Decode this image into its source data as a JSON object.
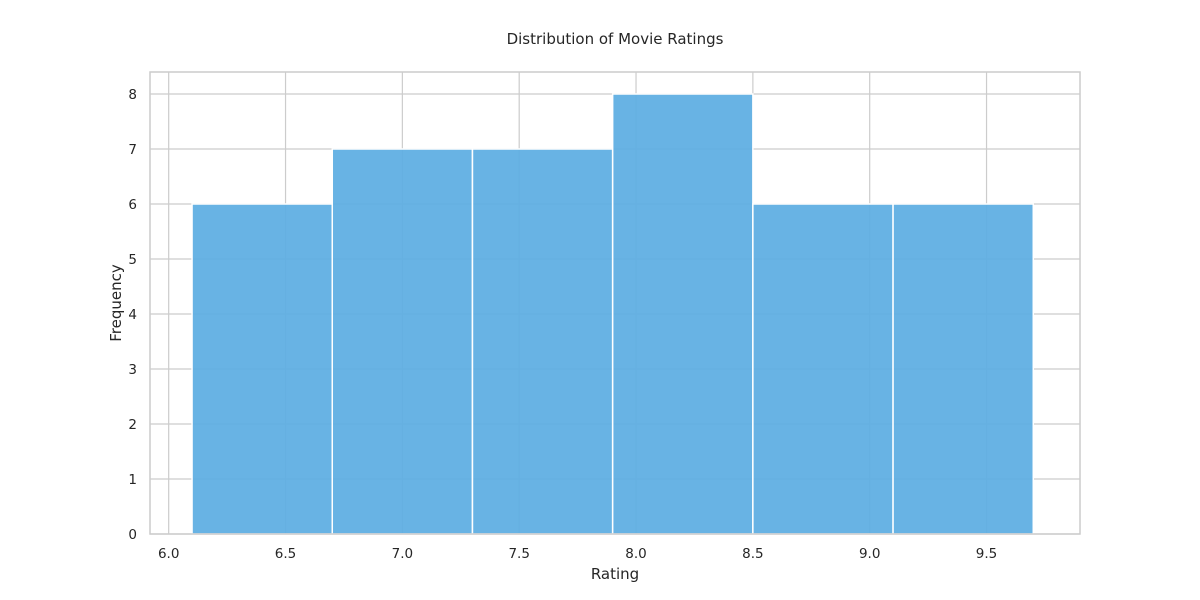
{
  "chart_data": {
    "type": "bar",
    "subtype": "histogram",
    "title": "Distribution of Movie Ratings",
    "xlabel": "Rating",
    "ylabel": "Frequency",
    "bins": [
      {
        "start": 6.1,
        "end": 6.7,
        "count": 6
      },
      {
        "start": 6.7,
        "end": 7.3,
        "count": 7
      },
      {
        "start": 7.3,
        "end": 7.9,
        "count": 7
      },
      {
        "start": 7.9,
        "end": 8.5,
        "count": 8
      },
      {
        "start": 8.5,
        "end": 9.1,
        "count": 6
      },
      {
        "start": 9.1,
        "end": 9.7,
        "count": 6
      }
    ],
    "xlim": [
      5.92,
      9.9
    ],
    "ylim": [
      0,
      8.4
    ],
    "xticks": [
      6.0,
      6.5,
      7.0,
      7.5,
      8.0,
      8.5,
      9.0,
      9.5
    ],
    "xtick_labels": [
      "6.0",
      "6.5",
      "7.0",
      "7.5",
      "8.0",
      "8.5",
      "9.0",
      "9.5"
    ],
    "yticks": [
      0,
      1,
      2,
      3,
      4,
      5,
      6,
      7,
      8
    ],
    "ytick_labels": [
      "0",
      "1",
      "2",
      "3",
      "4",
      "5",
      "6",
      "7",
      "8"
    ],
    "grid": true,
    "bar_color": "#5dade2",
    "grid_color": "#cccccc",
    "text_color": "#262626"
  }
}
